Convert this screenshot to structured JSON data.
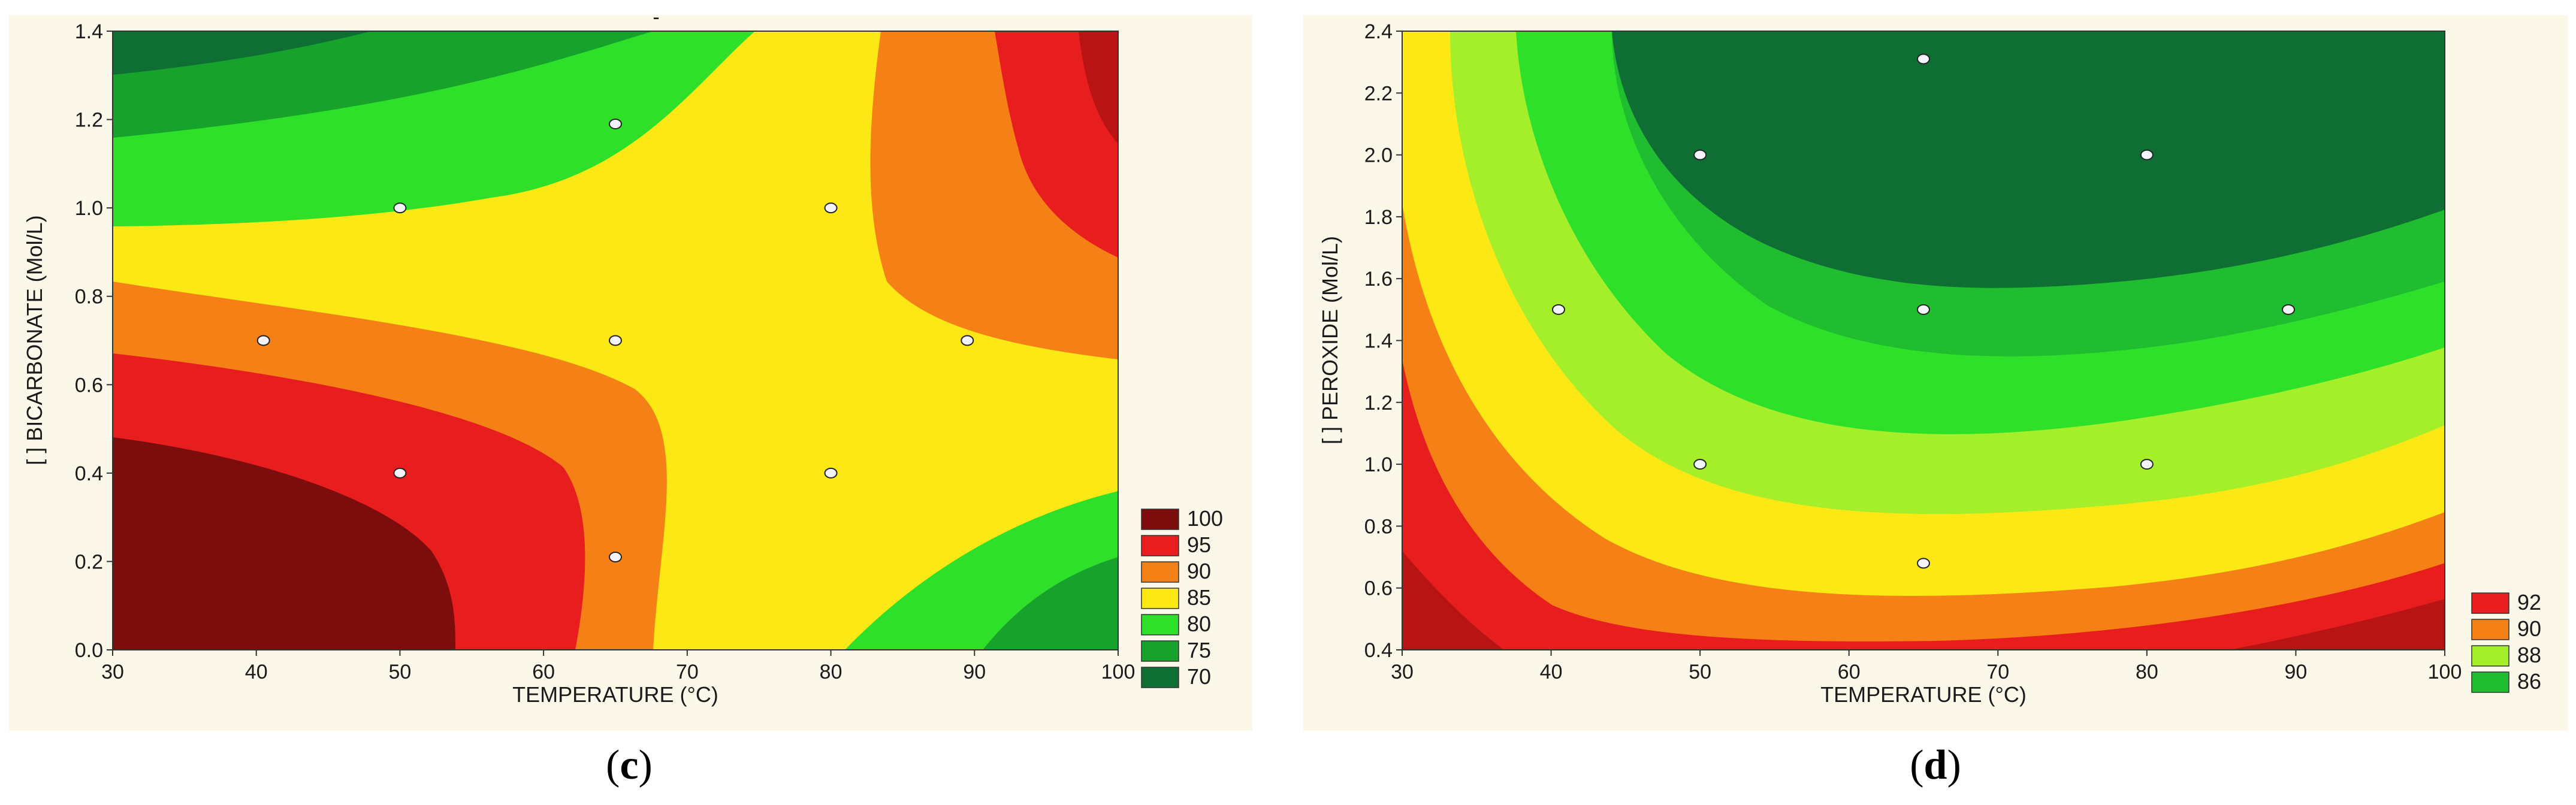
{
  "colors": {
    "panel_bg": "#fbf8ea",
    "band_100": "#7d0d0d",
    "band_95": "#e81d1d",
    "band_90": "#f48016",
    "band_85": "#fbe814",
    "band_80": "#2ee02a",
    "band_75": "#17a32b",
    "band_70": "#0f6e33",
    "band_92": "#e81d1d",
    "band_90d": "#f48016",
    "band_88": "#a4ef2a",
    "band_86": "#1fbd2f"
  },
  "chart_data": [
    {
      "type": "contour",
      "panel": "c",
      "caption": {
        "open": "(",
        "letter": "c",
        "close": ")"
      },
      "xlabel": "TEMPERATURE (°C)",
      "ylabel": "[ ] BICARBONATE (Mol/L)",
      "xlim": [
        30,
        100
      ],
      "ylim": [
        0.0,
        1.4
      ],
      "xticks": [
        "30",
        "40",
        "50",
        "60",
        "70",
        "80",
        "90",
        "100"
      ],
      "yticks": [
        "0.0",
        "0.2",
        "0.4",
        "0.6",
        "0.8",
        "1.0",
        "1.2",
        "1.4"
      ],
      "legend": [
        "100",
        "95",
        "90",
        "85",
        "80",
        "75",
        "70"
      ],
      "legend_color_keys": [
        "band_100",
        "band_95",
        "band_90",
        "band_85",
        "band_80",
        "band_75",
        "band_70"
      ],
      "top_mark": "-",
      "design_points": [
        {
          "x": 65,
          "y": 1.19
        },
        {
          "x": 50,
          "y": 1.0
        },
        {
          "x": 80,
          "y": 1.0
        },
        {
          "x": 40.5,
          "y": 0.7
        },
        {
          "x": 65,
          "y": 0.7
        },
        {
          "x": 89.5,
          "y": 0.7
        },
        {
          "x": 50,
          "y": 0.4
        },
        {
          "x": 80,
          "y": 0.4
        },
        {
          "x": 65,
          "y": 0.21
        }
      ]
    },
    {
      "type": "contour",
      "panel": "d",
      "caption": {
        "open": "(",
        "letter": "d",
        "close": ")"
      },
      "xlabel": "TEMPERATURE (°C)",
      "ylabel": "[ ] PEROXIDE (Mol/L)",
      "xlim": [
        30,
        100
      ],
      "ylim": [
        0.4,
        2.4
      ],
      "xticks": [
        "30",
        "40",
        "50",
        "60",
        "70",
        "80",
        "90",
        "100"
      ],
      "yticks": [
        "0.4",
        "0.6",
        "0.8",
        "1.0",
        "1.2",
        "1.4",
        "1.6",
        "1.8",
        "2.0",
        "2.2",
        "2.4"
      ],
      "legend": [
        "92",
        "90",
        "88",
        "86"
      ],
      "legend_color_keys": [
        "band_92",
        "band_90d",
        "band_88",
        "band_86"
      ],
      "design_points": [
        {
          "x": 65,
          "y": 2.31
        },
        {
          "x": 50,
          "y": 2.0
        },
        {
          "x": 80,
          "y": 2.0
        },
        {
          "x": 40.5,
          "y": 1.5
        },
        {
          "x": 65,
          "y": 1.5
        },
        {
          "x": 89.5,
          "y": 1.5
        },
        {
          "x": 50,
          "y": 1.0
        },
        {
          "x": 80,
          "y": 1.0
        },
        {
          "x": 65,
          "y": 0.68
        }
      ]
    }
  ]
}
